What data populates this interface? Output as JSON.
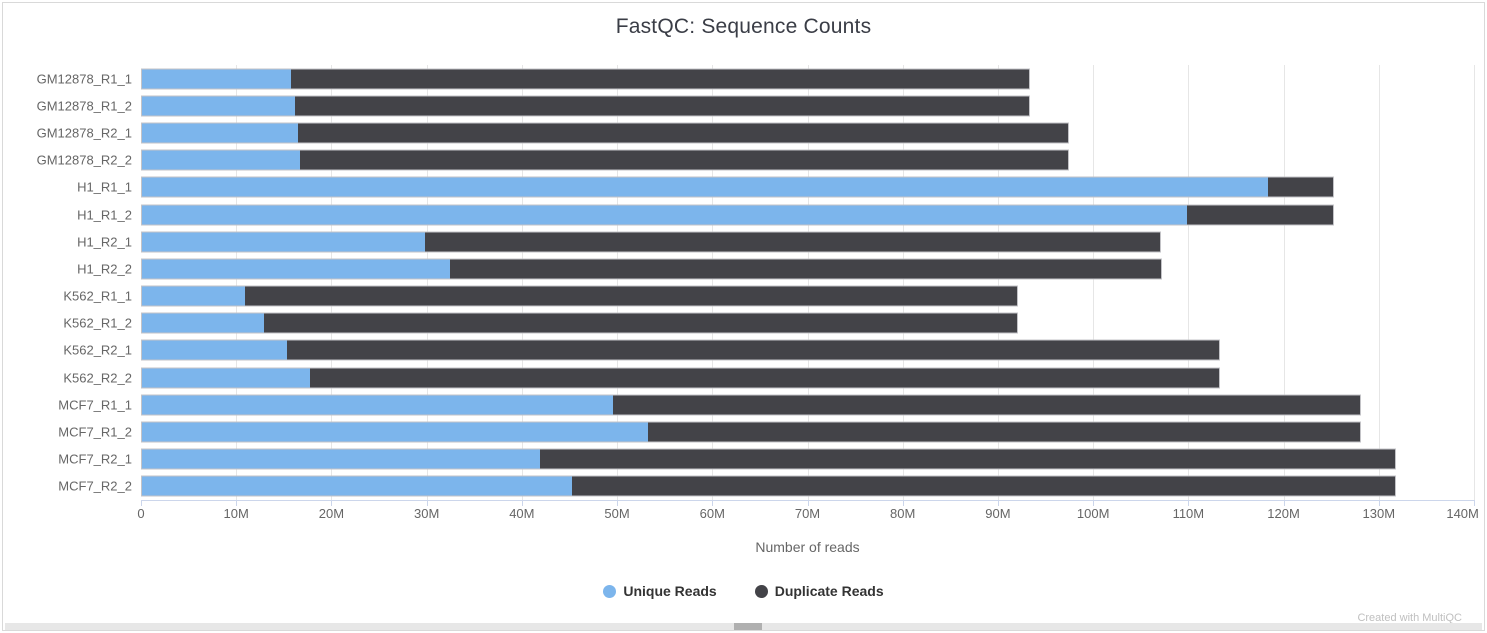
{
  "title": "FastQC: Sequence Counts",
  "chart_data": {
    "type": "bar",
    "orientation": "horizontal",
    "stacked": true,
    "title": "FastQC: Sequence Counts",
    "xlabel": "Number of reads",
    "ylabel": "",
    "values_unit": "millions of reads",
    "xmax": 140,
    "xlim": [
      0,
      140
    ],
    "grid": true,
    "legend_position": "bottom",
    "categories": [
      "GM12878_R1_1",
      "GM12878_R1_2",
      "GM12878_R2_1",
      "GM12878_R2_2",
      "H1_R1_1",
      "H1_R1_2",
      "H1_R2_1",
      "H1_R2_2",
      "K562_R1_1",
      "K562_R1_2",
      "K562_R2_1",
      "K562_R2_2",
      "MCF7_R1_1",
      "MCF7_R1_2",
      "MCF7_R2_1",
      "MCF7_R2_2"
    ],
    "series": [
      {
        "name": "Unique Reads",
        "color": "#7cb5ec",
        "values": [
          15.7,
          16.1,
          16.4,
          16.6,
          118.5,
          109.9,
          29.8,
          32.4,
          10.8,
          12.8,
          15.3,
          17.7,
          49.6,
          53.2,
          41.9,
          45.2
        ]
      },
      {
        "name": "Duplicate Reads",
        "color": "#434348",
        "values": [
          77.7,
          77.3,
          81.1,
          80.9,
          6.8,
          15.4,
          77.3,
          74.8,
          81.3,
          79.3,
          98.0,
          95.6,
          78.5,
          74.9,
          89.9,
          86.6
        ]
      }
    ],
    "stack_totals": [
      93.4,
      93.4,
      97.5,
      97.5,
      125.3,
      125.3,
      107.1,
      107.2,
      92.1,
      92.1,
      113.3,
      113.3,
      128.1,
      128.1,
      131.8,
      131.8
    ],
    "x_ticks": [
      {
        "value": 0,
        "label": "0"
      },
      {
        "value": 10,
        "label": "10M"
      },
      {
        "value": 20,
        "label": "20M"
      },
      {
        "value": 30,
        "label": "30M"
      },
      {
        "value": 40,
        "label": "40M"
      },
      {
        "value": 50,
        "label": "50M"
      },
      {
        "value": 60,
        "label": "60M"
      },
      {
        "value": 70,
        "label": "70M"
      },
      {
        "value": 80,
        "label": "80M"
      },
      {
        "value": 90,
        "label": "90M"
      },
      {
        "value": 100,
        "label": "100M"
      },
      {
        "value": 110,
        "label": "110M"
      },
      {
        "value": 120,
        "label": "120M"
      },
      {
        "value": 130,
        "label": "130M"
      },
      {
        "value": 140,
        "label": "140M"
      }
    ]
  },
  "colors": {
    "unique_reads": "#7cb5ec",
    "duplicate_reads": "#434348",
    "gridline": "#e6e6e6",
    "axis_line": "#ccd6eb",
    "axis_text": "#666666",
    "legend_text": "#333333",
    "title_text": "#3a3d46",
    "credit_text": "#bfbfbf"
  },
  "footer": {
    "credit": "Created with MultiQC"
  }
}
